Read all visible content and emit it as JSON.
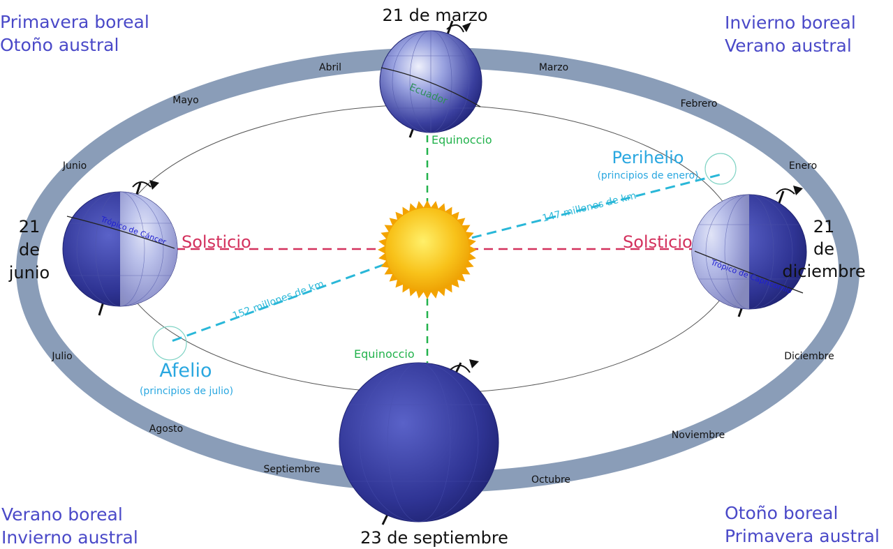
{
  "seasons": {
    "top_left": [
      "Primavera boreal",
      "Otoño austral"
    ],
    "top_right": [
      "Invierno boreal",
      "Verano austral"
    ],
    "bottom_left": [
      "Verano boreal",
      "Invierno austral"
    ],
    "bottom_right": [
      "Otoño boreal",
      "Primavera austral"
    ]
  },
  "dates": {
    "march": "21 de marzo",
    "september": "23 de septiembre",
    "june": [
      "21",
      "de",
      "junio"
    ],
    "december": [
      "21",
      "de",
      "diciembre"
    ]
  },
  "months": {
    "abril": "Abril",
    "marzo": "Marzo",
    "mayo": "Mayo",
    "febrero": "Febrero",
    "junio": "Junio",
    "enero": "Enero",
    "julio": "Julio",
    "diciembre": "Diciembre",
    "agosto": "Agosto",
    "noviembre": "Noviembre",
    "septiembre": "Septiembre",
    "octubre": "Octubre"
  },
  "labels": {
    "solsticio_left": "Solsticio",
    "solsticio_right": "Solsticio",
    "equinoccio_top": "Equinoccio",
    "equinoccio_bottom": "Equinoccio",
    "perihelio": "Perihelio",
    "perihelio_note": "(principios de enero)",
    "afelio": "Afelio",
    "afelio_note": "(principios de julio)",
    "dist_perihelio": "147 millones de km",
    "dist_afelio": "152 millones de km",
    "ecuador": "Ecuador",
    "tropico_cancer": "Trópico de Cáncer",
    "tropico_capricornio": "Trópico de Capricornio"
  },
  "colors": {
    "orbit_band": "#8a9db8",
    "season_text": "#4a49c8",
    "solstice_line": "#d3315d",
    "equinox_line": "#22b24c",
    "distance_line": "#29b7d8",
    "sun": "#f5b800",
    "earth_dark": "#2b2f8f",
    "earth_light": "#c8cdf0"
  }
}
